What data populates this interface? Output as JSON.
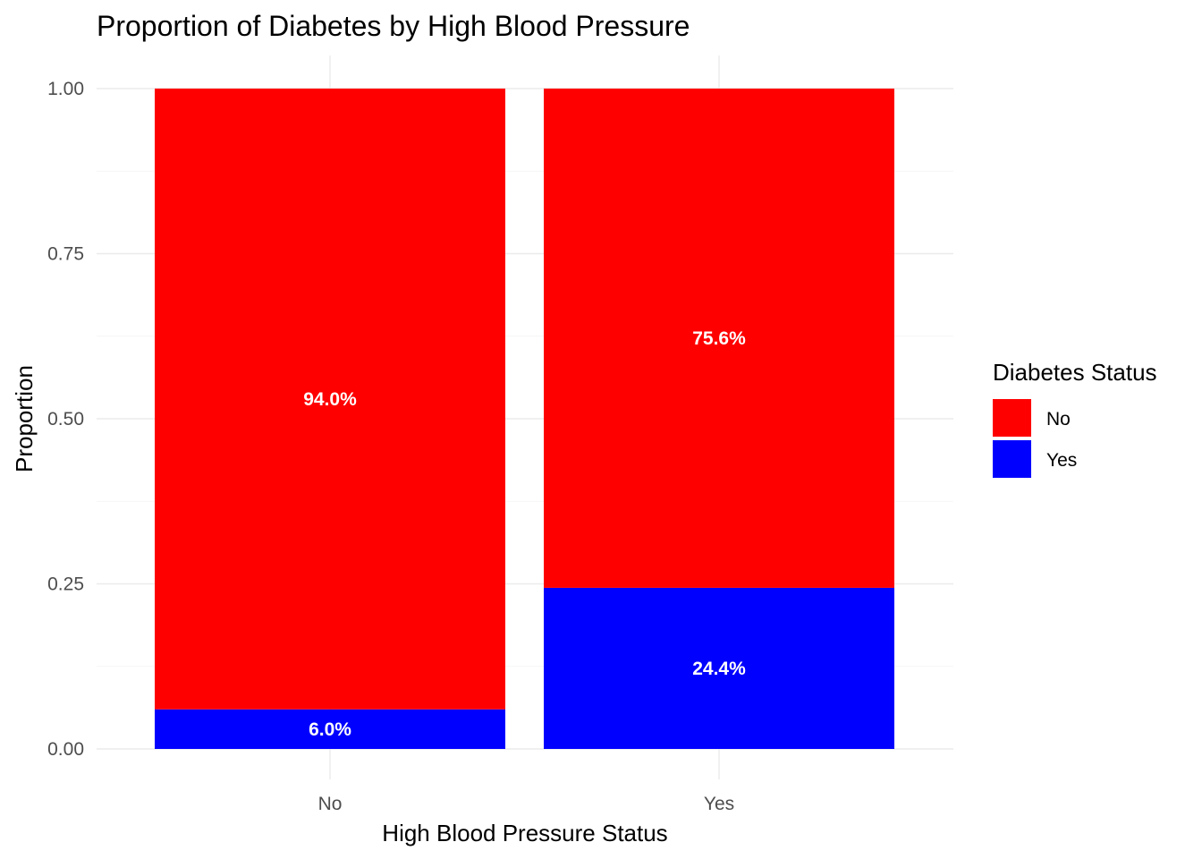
{
  "chart_data": {
    "type": "bar",
    "stacked": true,
    "title": "Proportion of Diabetes by High Blood Pressure",
    "xlabel": "High Blood Pressure Status",
    "ylabel": "Proportion",
    "categories": [
      "No",
      "Yes"
    ],
    "ylim": [
      0,
      1
    ],
    "yticks": [
      "0.00",
      "0.25",
      "0.50",
      "0.75",
      "1.00"
    ],
    "grid": true,
    "legend": {
      "title": "Diabetes Status",
      "position": "right"
    },
    "series": [
      {
        "name": "Yes",
        "color": "#0000ff",
        "values": [
          0.06,
          0.244
        ],
        "labels": [
          "6.0%",
          "24.4%"
        ]
      },
      {
        "name": "No",
        "color": "#ff0000",
        "values": [
          0.94,
          0.756
        ],
        "labels": [
          "94.0%",
          "75.6%"
        ]
      }
    ]
  }
}
